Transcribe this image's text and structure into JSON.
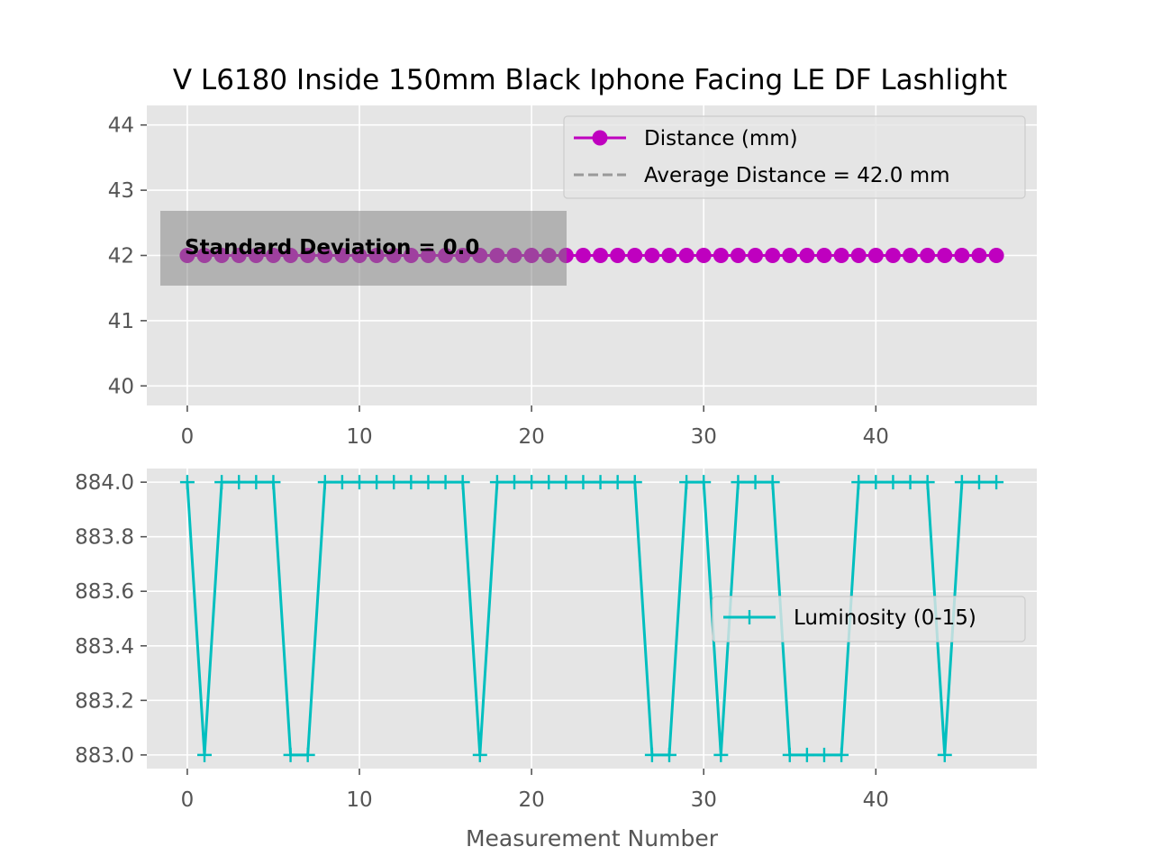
{
  "title": "V L6180 Inside 150mm Black Iphone Facing LE DF Lashlight",
  "chart_data": [
    {
      "type": "line",
      "x": [
        0,
        1,
        2,
        3,
        4,
        5,
        6,
        7,
        8,
        9,
        10,
        11,
        12,
        13,
        14,
        15,
        16,
        17,
        18,
        19,
        20,
        21,
        22,
        23,
        24,
        25,
        26,
        27,
        28,
        29,
        30,
        31,
        32,
        33,
        34,
        35,
        36,
        37,
        38,
        39,
        40,
        41,
        42,
        43,
        44,
        45,
        46,
        47
      ],
      "series": [
        {
          "name": "Distance (mm)",
          "color": "#bf00bf",
          "marker": "circle",
          "values": [
            42,
            42,
            42,
            42,
            42,
            42,
            42,
            42,
            42,
            42,
            42,
            42,
            42,
            42,
            42,
            42,
            42,
            42,
            42,
            42,
            42,
            42,
            42,
            42,
            42,
            42,
            42,
            42,
            42,
            42,
            42,
            42,
            42,
            42,
            42,
            42,
            42,
            42,
            42,
            42,
            42,
            42,
            42,
            42,
            42,
            42,
            42,
            42
          ]
        },
        {
          "name": "Average Distance = 42.0 mm",
          "color": "#999999",
          "style": "dashed",
          "value": 42.0
        }
      ],
      "annotation": "Standard Deviation = 0.0",
      "xlim": [
        -2.35,
        49.35
      ],
      "ylim": [
        39.7,
        44.3
      ],
      "xticks": [
        0,
        10,
        20,
        30,
        40
      ],
      "yticks": [
        40,
        41,
        42,
        43,
        44
      ],
      "legend": "upper right",
      "grid": true
    },
    {
      "type": "line",
      "x": [
        0,
        1,
        2,
        3,
        4,
        5,
        6,
        7,
        8,
        9,
        10,
        11,
        12,
        13,
        14,
        15,
        16,
        17,
        18,
        19,
        20,
        21,
        22,
        23,
        24,
        25,
        26,
        27,
        28,
        29,
        30,
        31,
        32,
        33,
        34,
        35,
        36,
        37,
        38,
        39,
        40,
        41,
        42,
        43,
        44,
        45,
        46,
        47
      ],
      "series": [
        {
          "name": "Luminosity (0-15)",
          "color": "#00bfbf",
          "marker": "plus",
          "values": [
            884,
            883,
            884,
            884,
            884,
            884,
            883,
            883,
            884,
            884,
            884,
            884,
            884,
            884,
            884,
            884,
            884,
            883,
            884,
            884,
            884,
            884,
            884,
            884,
            884,
            884,
            884,
            883,
            883,
            884,
            884,
            883,
            884,
            884,
            884,
            883,
            883,
            883,
            883,
            884,
            884,
            884,
            884,
            884,
            883,
            884,
            884,
            884
          ]
        }
      ],
      "xlabel": "Measurement Number",
      "xlim": [
        -2.35,
        49.35
      ],
      "ylim": [
        882.95,
        884.05
      ],
      "xticks": [
        0,
        10,
        20,
        30,
        40
      ],
      "yticks": [
        883.0,
        883.2,
        883.4,
        883.6,
        883.8,
        884.0
      ],
      "ytick_labels": [
        "883.0",
        "883.2",
        "883.4",
        "883.6",
        "883.8",
        "884.0"
      ],
      "legend": "center right",
      "grid": true
    }
  ]
}
